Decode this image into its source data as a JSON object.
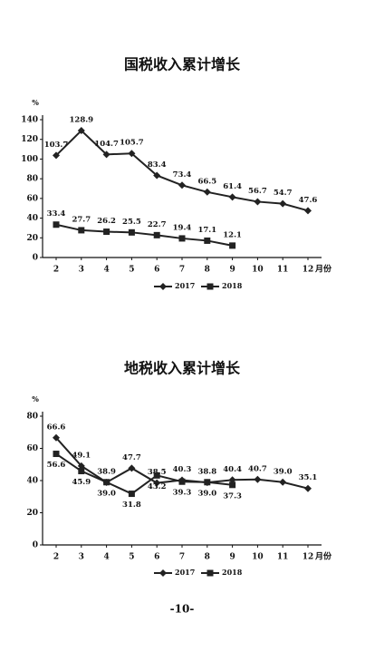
{
  "chart_data": [
    {
      "type": "line",
      "title": "国税收入累计增长",
      "y_unit": "%",
      "xlabel": "月份",
      "categories": [
        "2",
        "3",
        "4",
        "5",
        "6",
        "7",
        "8",
        "9",
        "10",
        "11",
        "12"
      ],
      "ylim": [
        0,
        140
      ],
      "yticks": [
        0,
        20,
        40,
        60,
        80,
        100,
        120,
        140
      ],
      "legend": "bottom",
      "series": [
        {
          "name": "2017",
          "color": "#222222",
          "marker": "diamond",
          "label_side": "above",
          "values": [
            103.7,
            128.9,
            104.7,
            105.7,
            83.4,
            73.4,
            66.5,
            61.4,
            56.7,
            54.7,
            47.6
          ]
        },
        {
          "name": "2018",
          "color": "#222222",
          "marker": "square",
          "label_side": "above",
          "values": [
            33.4,
            27.7,
            26.2,
            25.5,
            22.7,
            19.4,
            17.1,
            12.1,
            null,
            null,
            null
          ]
        }
      ]
    },
    {
      "type": "line",
      "title": "地税收入累计增长",
      "y_unit": "%",
      "xlabel": "月份",
      "categories": [
        "2",
        "3",
        "4",
        "5",
        "6",
        "7",
        "8",
        "9",
        "10",
        "11",
        "12"
      ],
      "ylim": [
        0,
        80
      ],
      "yticks": [
        0,
        20,
        40,
        60,
        80
      ],
      "legend": "bottom",
      "series": [
        {
          "name": "2017",
          "color": "#222222",
          "marker": "diamond",
          "label_side": "above",
          "values": [
            66.6,
            49.1,
            38.9,
            47.7,
            38.5,
            40.3,
            38.8,
            40.4,
            40.7,
            39,
            35.1
          ],
          "value_labels": [
            "66.6",
            "49.1",
            "38.9",
            "47.7",
            "38.5",
            "40.3",
            "38.8",
            "40.4",
            "40.7",
            "39.0",
            "35.1"
          ]
        },
        {
          "name": "2018",
          "color": "#222222",
          "marker": "square",
          "label_side": "below",
          "values": [
            56.6,
            45.9,
            39,
            31.8,
            43.2,
            39.3,
            39,
            37.3,
            null,
            null,
            null
          ],
          "value_labels": [
            "56.6",
            "45.9",
            "39.0",
            "31.8",
            "43.2",
            "39.3",
            "39.0",
            "37.3",
            null,
            null,
            null
          ]
        }
      ]
    }
  ],
  "page_number": "-10-"
}
